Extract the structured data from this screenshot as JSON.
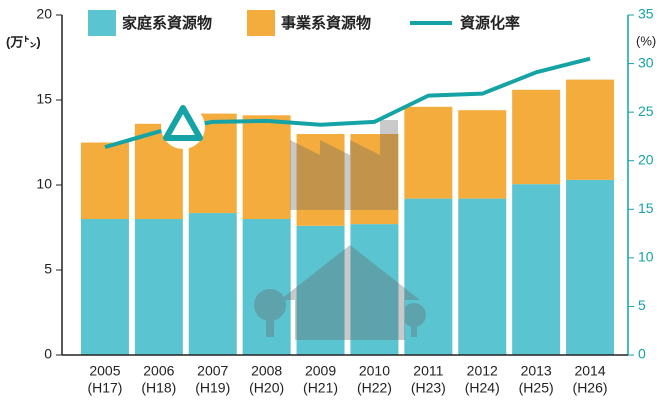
{
  "chart_data": {
    "type": "bar-line",
    "ylabel": "(万㌧)",
    "y2label": "(%)",
    "categories": [
      "2005",
      "2006",
      "2007",
      "2008",
      "2009",
      "2010",
      "2011",
      "2012",
      "2013",
      "2014"
    ],
    "category_sublabels": [
      "(H17)",
      "(H18)",
      "(H19)",
      "(H20)",
      "(H21)",
      "(H22)",
      "(H23)",
      "(H24)",
      "(H25)",
      "(H26)"
    ],
    "series": [
      {
        "name": "家庭系資源物",
        "type": "bar",
        "color": "#5bc4d1",
        "values": [
          8.0,
          8.0,
          8.35,
          8.0,
          7.6,
          7.7,
          9.2,
          9.2,
          10.05,
          10.3
        ]
      },
      {
        "name": "事業系資源物",
        "type": "bar",
        "color": "#f4ad3d",
        "values": [
          4.5,
          5.6,
          5.85,
          6.1,
          5.4,
          5.3,
          5.4,
          5.2,
          5.55,
          5.9
        ]
      },
      {
        "name": "資源化率",
        "type": "line",
        "axis": "y2",
        "color": "#15a3a6",
        "values": [
          21.4,
          23.0,
          24.0,
          24.1,
          23.7,
          24.0,
          26.7,
          26.9,
          29.1,
          30.5
        ]
      }
    ],
    "ylim": [
      0,
      20
    ],
    "yticks": [
      0,
      5,
      10,
      15,
      20
    ],
    "y2lim": [
      0,
      35
    ],
    "y2ticks": [
      0,
      5,
      10,
      15,
      20,
      25,
      30,
      35
    ],
    "y2color": "#15a3a6"
  }
}
